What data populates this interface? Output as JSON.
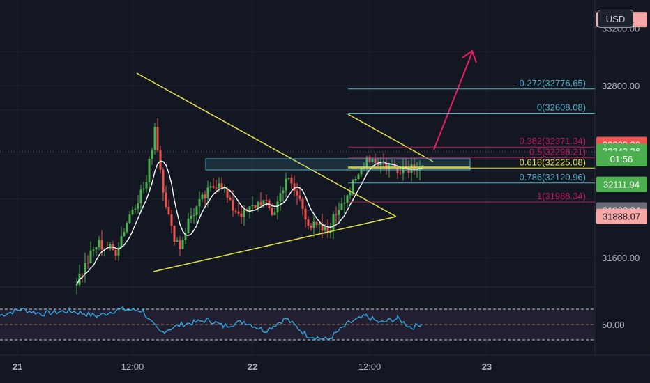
{
  "currency": "USD",
  "colors": {
    "background": "#131722",
    "bull": "#26a69a",
    "bear": "#ef5350",
    "trendline": "#e8e34a",
    "rsi": "#2fb0e8",
    "ma": "#ffffff",
    "arrow": "#e91e63"
  },
  "chart_data": {
    "type": "candlestick",
    "price_axis": {
      "ticks": [
        "33200.00",
        "32800.00",
        "31600.00"
      ],
      "values": [
        33200,
        32800,
        31600
      ]
    },
    "time_axis": {
      "labels": [
        "21",
        "12:00",
        "22",
        "12:00",
        "23"
      ]
    },
    "price_tags": [
      {
        "text": "33261",
        "value": 33261,
        "bg": "#f7a6a6",
        "fg": "#131722"
      },
      {
        "text": "32389.30",
        "value": 32389.3,
        "bg": "#ef5350",
        "fg": "#ffffff"
      },
      {
        "text": "32342.26",
        "value": 32342.26,
        "bg": "#4caf50",
        "fg": "#ffffff"
      },
      {
        "text": "01:56",
        "value": 32290,
        "bg": "#4caf50",
        "fg": "#ffffff"
      },
      {
        "text": "32111.94",
        "value": 32111.94,
        "bg": "#4caf50",
        "fg": "#ffffff"
      },
      {
        "text": "31932.84",
        "value": 31932.84,
        "bg": "#6a6d78",
        "fg": "#ffffff"
      },
      {
        "text": "31888.07",
        "value": 31888.07,
        "bg": "#f7a6a6",
        "fg": "#131722"
      }
    ],
    "fib_levels": [
      {
        "text": "-0.272(32776.65)",
        "ratio": -0.272,
        "price": 32776.65,
        "color": "#4fb3c9"
      },
      {
        "text": "0(32608.08)",
        "ratio": 0,
        "price": 32608.08,
        "color": "#4fb3c9"
      },
      {
        "text": "0.382(32371.34)",
        "ratio": 0.382,
        "price": 32371.34,
        "color": "#c2185b"
      },
      {
        "text": "0.5(32298.21)",
        "ratio": 0.5,
        "price": 32298.21,
        "color": "#c2185b"
      },
      {
        "text": "0.618(32225.08)",
        "ratio": 0.618,
        "price": 32225.08,
        "color": "#e8e34a"
      },
      {
        "text": "0.786(32120.96)",
        "ratio": 0.786,
        "price": 32120.96,
        "color": "#4fb3c9"
      },
      {
        "text": "1(31988.34)",
        "ratio": 1,
        "price": 31988.34,
        "color": "#c2185b"
      }
    ],
    "rsi": {
      "label": "50.00",
      "value": 50,
      "upper": 70,
      "lower": 30
    },
    "annotations": [
      "symmetrical-triangle",
      "descending-wedge",
      "rectangle-zone",
      "up-arrow"
    ],
    "grid": true
  }
}
